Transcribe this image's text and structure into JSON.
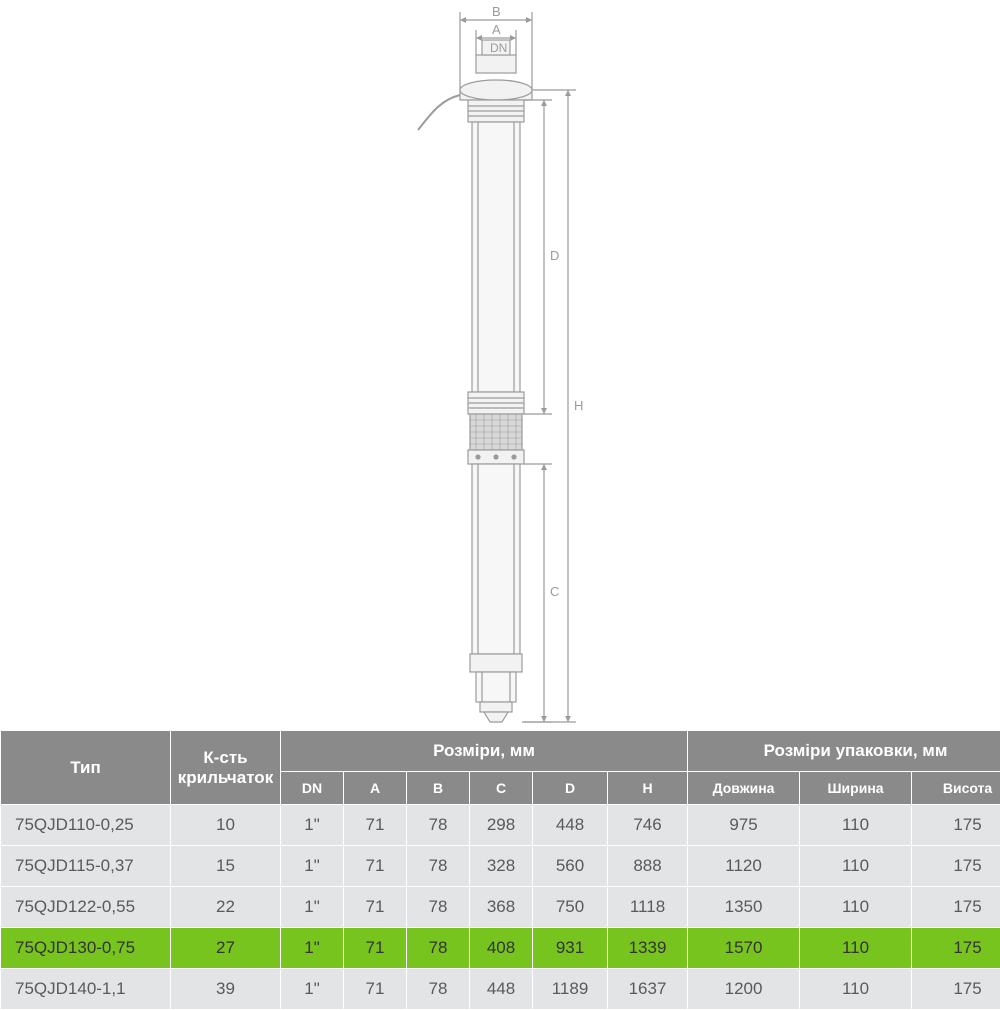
{
  "diagram": {
    "labels": {
      "DN": "DN",
      "A": "A",
      "B": "B",
      "C": "C",
      "D": "D",
      "H": "H"
    },
    "stroke": "#9b9b9b",
    "fill_light": "#f2f2f2",
    "fill_mesh": "#d8d8d8"
  },
  "table": {
    "header": {
      "type": "Тип",
      "impellers": "К-сть крильчаток",
      "dims": "Розміри, мм",
      "pack": "Розміри упаковки, мм",
      "sub": {
        "DN": "DN",
        "A": "A",
        "B": "B",
        "C": "C",
        "D": "D",
        "H": "H",
        "len": "Довжина",
        "wid": "Ширина",
        "hgt": "Висота"
      }
    },
    "rows": [
      {
        "type": "75QJD110-0,25",
        "imp": "10",
        "DN": "1\"",
        "A": "71",
        "B": "78",
        "C": "298",
        "D": "448",
        "H": "746",
        "len": "975",
        "wid": "110",
        "hgt": "175",
        "highlight": false
      },
      {
        "type": "75QJD115-0,37",
        "imp": "15",
        "DN": "1\"",
        "A": "71",
        "B": "78",
        "C": "328",
        "D": "560",
        "H": "888",
        "len": "1120",
        "wid": "110",
        "hgt": "175",
        "highlight": false
      },
      {
        "type": "75QJD122-0,55",
        "imp": "22",
        "DN": "1\"",
        "A": "71",
        "B": "78",
        "C": "368",
        "D": "750",
        "H": "1118",
        "len": "1350",
        "wid": "110",
        "hgt": "175",
        "highlight": false
      },
      {
        "type": "75QJD130-0,75",
        "imp": "27",
        "DN": "1\"",
        "A": "71",
        "B": "78",
        "C": "408",
        "D": "931",
        "H": "1339",
        "len": "1570",
        "wid": "110",
        "hgt": "175",
        "highlight": true
      },
      {
        "type": "75QJD140-1,1",
        "imp": "39",
        "DN": "1\"",
        "A": "71",
        "B": "78",
        "C": "448",
        "D": "1189",
        "H": "1637",
        "len": "1200",
        "wid": "110",
        "hgt": "175",
        "highlight": false
      }
    ],
    "colors": {
      "header_bg": "#8a8a8a",
      "header_fg": "#ffffff",
      "row_bg": "#e2e4e6",
      "row_fg": "#5a5a5a",
      "highlight_bg": "#78c41f",
      "border": "#ffffff"
    }
  }
}
